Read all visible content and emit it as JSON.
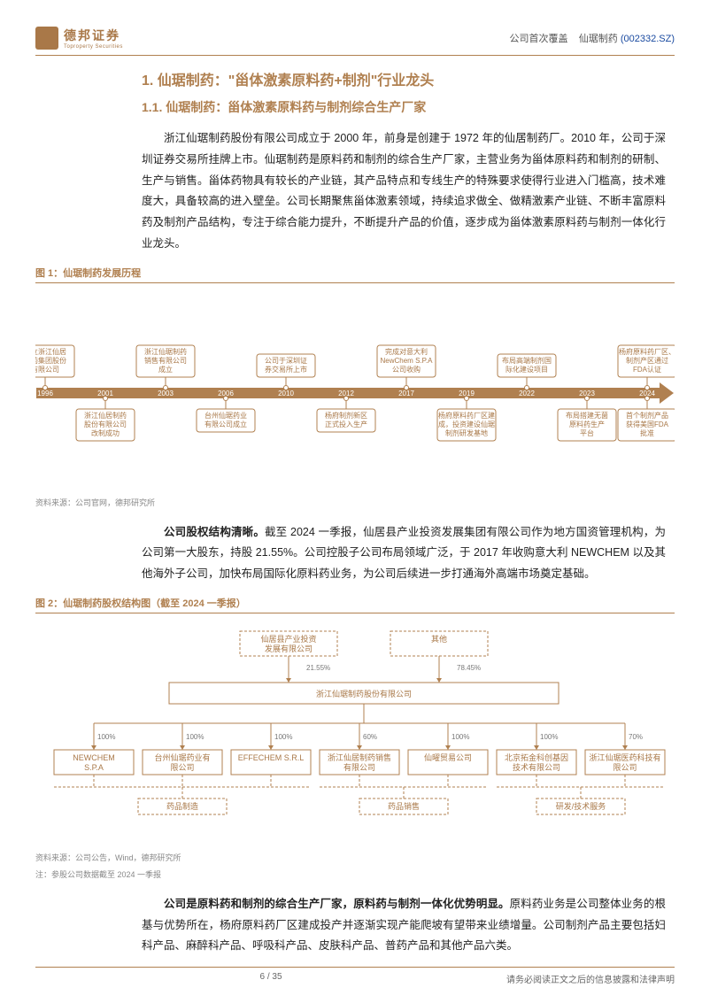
{
  "header": {
    "brand_cn": "德邦证券",
    "brand_en": "Toproperty Securities",
    "coverage": "公司首次覆盖",
    "company": "仙琚制药",
    "ticker": "(002332.SZ)"
  },
  "section": {
    "title": "1. 仙琚制药：\"甾体激素原料药+制剂\"行业龙头",
    "subtitle": "1.1. 仙琚制药：甾体激素原料药与制剂综合生产厂家",
    "para1": "浙江仙琚制药股份有限公司成立于 2000 年，前身是创建于 1972 年的仙居制药厂。2010 年，公司于深圳证券交易所挂牌上市。仙琚制药是原料药和制剂的综合生产厂家，主营业务为甾体原料药和制剂的研制、生产与销售。甾体药物具有较长的产业链，其产品特点和专线生产的特殊要求使得行业进入门槛高，技术难度大，具备较高的进入壁垒。公司长期聚焦甾体激素领域，持续追求做全、做精激素产业链、不断丰富原料药及制剂产品结构，专注于综合能力提升，不断提升产品的价值，逐步成为甾体激素原料药与制剂一体化行业龙头。",
    "para2_lead": "公司股权结构清晰。",
    "para2": "截至 2024 一季报，仙居县产业投资发展集团有限公司作为地方国资管理机构，为公司第一大股东，持股 21.55%。公司控股子公司布局领域广泛，于 2017 年收购意大利 NEWCHEM 以及其他海外子公司，加快布局国际化原料药业务，为公司后续进一步打通海外高端市场奠定基础。",
    "para3_lead": "公司是原料药和制剂的综合生产厂家，原料药与制剂一体化优势明显。",
    "para3": "原料药业务是公司整体业务的根基与优势所在，杨府原料药厂区建成投产并逐渐实现产能爬坡有望带来业绩增量。公司制剂产品主要包括妇科产品、麻醉科产品、呼吸科产品、皮肤科产品、普药产品和其他产品六类。"
  },
  "figure1": {
    "label": "图 1：仙琚制药发展历程",
    "source": "资料来源：公司官网，德邦研究所",
    "arrow_color": "#b08050",
    "box_border": "#b08050",
    "box_text_color": "#a97848",
    "year_bg": "#b08050",
    "years": [
      "1996",
      "2001",
      "2003",
      "2006",
      "2010",
      "2012",
      "2017",
      "2019",
      "2022",
      "2023",
      "2024"
    ],
    "top_events": [
      {
        "year": "1996",
        "lines": [
          "成立浙江仙居",
          "制药集团股份",
          "有限公司"
        ]
      },
      {
        "year": "2003",
        "lines": [
          "浙江仙琚制药",
          "销售有限公司",
          "成立"
        ]
      },
      {
        "year": "2010",
        "lines": [
          "公司于深圳证",
          "券交易所上市"
        ]
      },
      {
        "year": "2017",
        "lines": [
          "完成对意大利",
          "NewChem S.P.A",
          "公司收购"
        ]
      },
      {
        "year": "2022",
        "lines": [
          "布局高端制剂国",
          "际化建设项目"
        ]
      },
      {
        "year": "2024",
        "lines": [
          "杨府原料药厂区、",
          "制剂产区通过",
          "FDA认证"
        ]
      }
    ],
    "bottom_events": [
      {
        "year": "2001",
        "lines": [
          "浙江仙居制药",
          "股份有限公司",
          "改制成功"
        ]
      },
      {
        "year": "2006",
        "lines": [
          "台州仙琚药业",
          "有限公司成立"
        ]
      },
      {
        "year": "2012",
        "lines": [
          "杨府制剂新区",
          "正式投入生产"
        ]
      },
      {
        "year": "2019",
        "lines": [
          "杨府原料药厂区建",
          "成，投资建设仙琚",
          "制剂研发基地"
        ]
      },
      {
        "year": "2023",
        "lines": [
          "布局搭建无菌",
          "原料药生产",
          "平台"
        ]
      },
      {
        "year": "2024",
        "lines": [
          "首个制剂产品",
          "获得美国FDA",
          "批准"
        ]
      }
    ]
  },
  "figure2": {
    "label": "图 2：仙琚制药股权结构图（截至 2024 一季报）",
    "source": "资料来源：公司公告，Wind，德邦研究所",
    "note": "注：参股公司数据截至 2024 一季报",
    "colors": {
      "box_border": "#b08050",
      "text": "#a97848",
      "line": "#b08050",
      "bg": "#ffffff"
    },
    "top_nodes": [
      {
        "name_l1": "仙居县产业投资",
        "name_l2": "发展有限公司",
        "pct": "21.55%"
      },
      {
        "name_l1": "其他",
        "name_l2": "",
        "pct": "78.45%"
      }
    ],
    "parent": "浙江仙琚制药股份有限公司",
    "subs": [
      {
        "name_l1": "NEWCHEM",
        "name_l2": "S.P.A",
        "pct": "100%",
        "cat": 0
      },
      {
        "name_l1": "台州仙琚药业有",
        "name_l2": "限公司",
        "pct": "100%",
        "cat": 0
      },
      {
        "name_l1": "EFFECHEM S.R.L",
        "name_l2": "",
        "pct": "100%",
        "cat": 0
      },
      {
        "name_l1": "浙江仙居制药销售",
        "name_l2": "有限公司",
        "pct": "60%",
        "cat": 1
      },
      {
        "name_l1": "仙曜贸易公司",
        "name_l2": "",
        "pct": "100%",
        "cat": 1
      },
      {
        "name_l1": "北京拓金科创基因",
        "name_l2": "技术有限公司",
        "pct": "100%",
        "cat": 2
      },
      {
        "name_l1": "浙江仙琚医药科技有",
        "name_l2": "限公司",
        "pct": "70%",
        "cat": 2
      }
    ],
    "categories": [
      "药品制造",
      "药品销售",
      "研发/技术服务"
    ]
  },
  "footer": {
    "page": "6 / 35",
    "disclaimer": "请务必阅读正文之后的信息披露和法律声明"
  }
}
